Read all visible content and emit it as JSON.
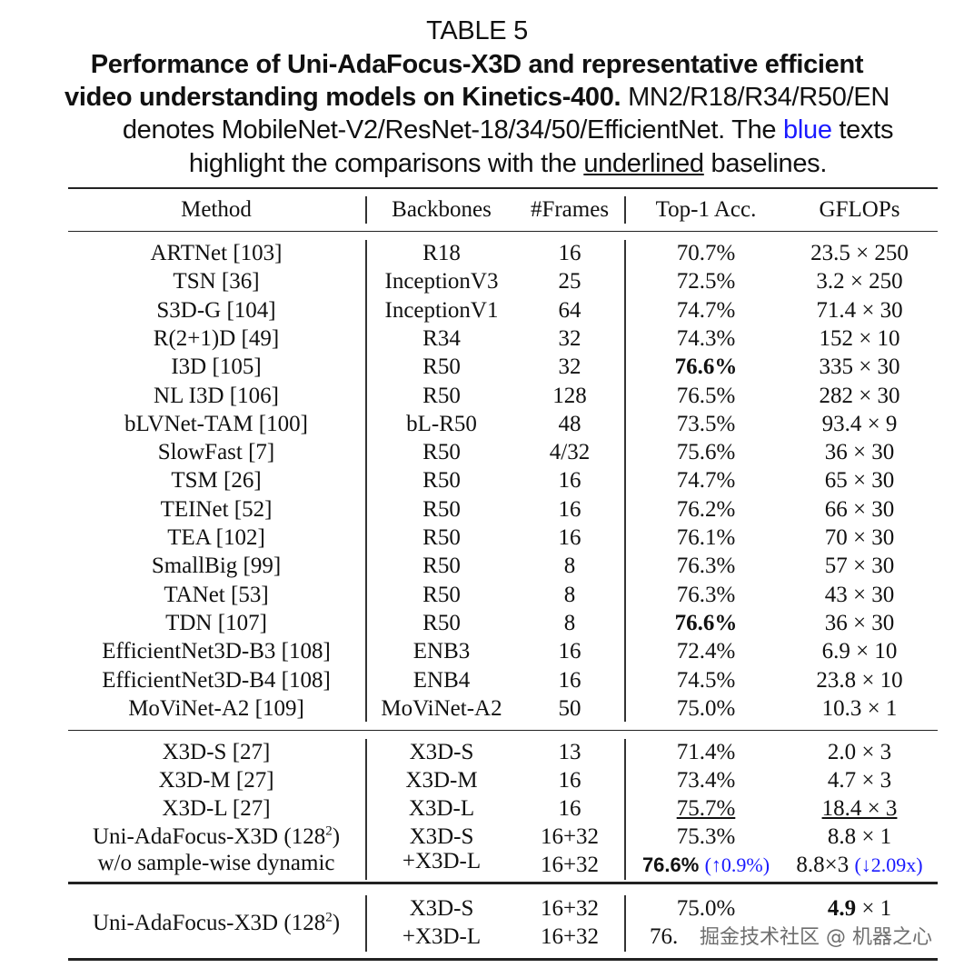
{
  "caption": {
    "table_label": "TABLE 5",
    "title_bold_1": "Performance of Uni-AdaFocus-X3D and representative efficient",
    "title_bold_2": "video understanding models on Kinetics-400.",
    "desc_1": " MN2/R18/R34/R50/EN",
    "desc_2a": "denotes MobileNet-V2/ResNet-18/34/50/EfficientNet. The ",
    "desc_2_blue": "blue",
    "desc_2b": " texts",
    "desc_3a": "highlight the comparisons with the ",
    "desc_3_ul": "underlined",
    "desc_3b": " baselines."
  },
  "columns": [
    "Method",
    "Backbones",
    "#Frames",
    "Top-1 Acc.",
    "GFLOPs"
  ],
  "rows": [
    {
      "method": "ARTNet [103]",
      "backbone": "R18",
      "frames": "16",
      "acc": "70.7%",
      "gflops": "23.5 × 250"
    },
    {
      "method": "TSN [36]",
      "backbone": "InceptionV3",
      "frames": "25",
      "acc": "72.5%",
      "gflops": "3.2 × 250"
    },
    {
      "method": "S3D-G [104]",
      "backbone": "InceptionV1",
      "frames": "64",
      "acc": "74.7%",
      "gflops": "71.4 × 30"
    },
    {
      "method": "R(2+1)D [49]",
      "backbone": "R34",
      "frames": "32",
      "acc": "74.3%",
      "gflops": "152 × 10"
    },
    {
      "method": "I3D [105]",
      "backbone": "R50",
      "frames": "32",
      "acc": "76.6%",
      "acc_bold": true,
      "gflops": "335 × 30"
    },
    {
      "method": "NL I3D [106]",
      "backbone": "R50",
      "frames": "128",
      "acc": "76.5%",
      "gflops": "282 × 30"
    },
    {
      "method": "bLVNet-TAM [100]",
      "backbone": "bL-R50",
      "frames": "48",
      "acc": "73.5%",
      "gflops": "93.4 × 9"
    },
    {
      "method": "SlowFast [7]",
      "backbone": "R50",
      "frames": "4/32",
      "acc": "75.6%",
      "gflops": "36 × 30"
    },
    {
      "method": "TSM [26]",
      "backbone": "R50",
      "frames": "16",
      "acc": "74.7%",
      "gflops": "65 × 30"
    },
    {
      "method": "TEINet [52]",
      "backbone": "R50",
      "frames": "16",
      "acc": "76.2%",
      "gflops": "66 × 30"
    },
    {
      "method": "TEA [102]",
      "backbone": "R50",
      "frames": "16",
      "acc": "76.1%",
      "gflops": "70 × 30"
    },
    {
      "method": "SmallBig [99]",
      "backbone": "R50",
      "frames": "8",
      "acc": "76.3%",
      "gflops": "57 × 30"
    },
    {
      "method": "TANet [53]",
      "backbone": "R50",
      "frames": "8",
      "acc": "76.3%",
      "gflops": "43 × 30"
    },
    {
      "method": "TDN [107]",
      "backbone": "R50",
      "frames": "8",
      "acc": "76.6%",
      "acc_bold": true,
      "gflops": "36 × 30"
    },
    {
      "method": "EfficientNet3D-B3 [108]",
      "backbone": "ENB3",
      "frames": "16",
      "acc": "72.4%",
      "gflops": "6.9 × 10"
    },
    {
      "method": "EfficientNet3D-B4 [108]",
      "backbone": "ENB4",
      "frames": "16",
      "acc": "74.5%",
      "gflops": "23.8 × 10"
    },
    {
      "method": "MoViNet-A2 [109]",
      "backbone": "MoViNet-A2",
      "frames": "50",
      "acc": "75.0%",
      "gflops": "10.3 × 1"
    }
  ],
  "x3d_rows": [
    {
      "method": "X3D-S [27]",
      "backbone": "X3D-S",
      "frames": "13",
      "acc": "71.4%",
      "gflops": "2.0 × 3"
    },
    {
      "method": "X3D-M [27]",
      "backbone": "X3D-M",
      "frames": "16",
      "acc": "73.4%",
      "gflops": "4.7 × 3"
    },
    {
      "method": "X3D-L [27]",
      "backbone": "X3D-L",
      "frames": "16",
      "acc": "75.7%",
      "acc_ul": true,
      "gflops": "18.4 × 3",
      "gflops_ul": true
    }
  ],
  "ablation": {
    "method_1": "Uni-AdaFocus-X3D (128",
    "method_sup": "2",
    "method_1_end": ")",
    "method_2": "w/o sample-wise dynamic",
    "backbone_1": "X3D-S",
    "backbone_2": "+X3D-L",
    "frames_1": "16+32",
    "frames_2": "16+32",
    "acc_1": "75.3%",
    "acc_2": "76.6%",
    "acc_2_delta": "(↑0.9%)",
    "gflops_1": "8.8 × 1",
    "gflops_2": "8.8×3",
    "gflops_2_delta": "(↓2.09x)"
  },
  "final": {
    "method": "Uni-AdaFocus-X3D (128",
    "method_sup": "2",
    "method_end": ")",
    "backbone_1": "X3D-S",
    "backbone_2": "+X3D-L",
    "frames_1": "16+32",
    "frames_2": "16+32",
    "acc_1": "75.0%",
    "acc_2": "76.",
    "gflops_1_bold": "4.9",
    "gflops_1_rest": " × 1"
  },
  "watermark": "掘金技术社区 @ 机器之心",
  "colors": {
    "highlight_blue": "#1a1aff"
  }
}
